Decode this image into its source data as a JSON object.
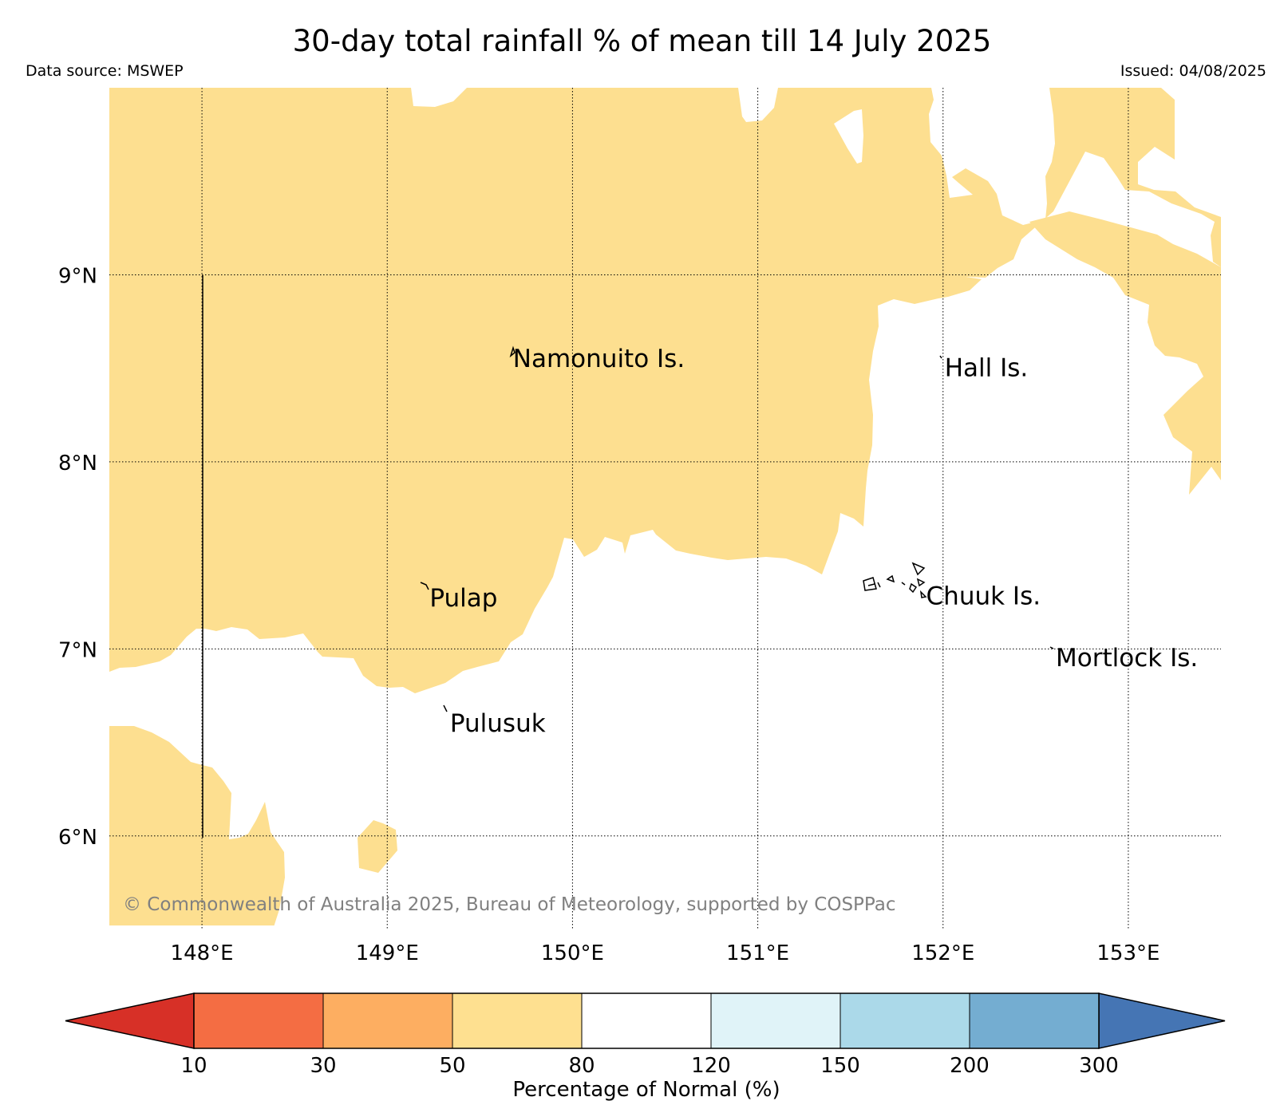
{
  "title": "30-day total rainfall % of mean till 14 July 2025",
  "data_source": "Data source: MSWEP",
  "issued": "Issued: 04/08/2025",
  "copyright": "© Commonwealth of Australia 2025, Bureau of Meteorology, supported by COSPPac",
  "map": {
    "lon_range": [
      147.5,
      153.5
    ],
    "lat_range": [
      5.5,
      10.0
    ],
    "lon_ticks": [
      {
        "value": 148,
        "label": "148°E"
      },
      {
        "value": 149,
        "label": "149°E"
      },
      {
        "value": 150,
        "label": "150°E"
      },
      {
        "value": 151,
        "label": "151°E"
      },
      {
        "value": 152,
        "label": "152°E"
      },
      {
        "value": 153,
        "label": "153°E"
      }
    ],
    "lat_ticks": [
      {
        "value": 6,
        "label": "6°N"
      },
      {
        "value": 7,
        "label": "7°N"
      },
      {
        "value": 8,
        "label": "8°N"
      },
      {
        "value": 9,
        "label": "9°N"
      }
    ],
    "gridlines": true,
    "places": [
      {
        "name": "Namonuito Is.",
        "lon": 149.67,
        "lat": 8.55
      },
      {
        "name": "Hall Is.",
        "lon": 152.0,
        "lat": 8.5
      },
      {
        "name": "Pulap",
        "lon": 149.22,
        "lat": 7.27
      },
      {
        "name": "Chuuk Is.",
        "lon": 151.9,
        "lat": 7.28
      },
      {
        "name": "Mortlock Is.",
        "lon": 152.6,
        "lat": 6.95
      },
      {
        "name": "Pulusuk",
        "lon": 149.33,
        "lat": 6.6
      }
    ],
    "fill_color": "#fddf90"
  },
  "colorbar": {
    "label": "Percentage of Normal (%)",
    "ticks": [
      "10",
      "30",
      "50",
      "80",
      "120",
      "150",
      "200",
      "300"
    ],
    "under_color": "#d73027",
    "over_color": "#4575b4",
    "colors": [
      "#f46d43",
      "#fdae61",
      "#fee090",
      "#ffffff",
      "#e0f3f8",
      "#abd9e9",
      "#74add1"
    ]
  }
}
